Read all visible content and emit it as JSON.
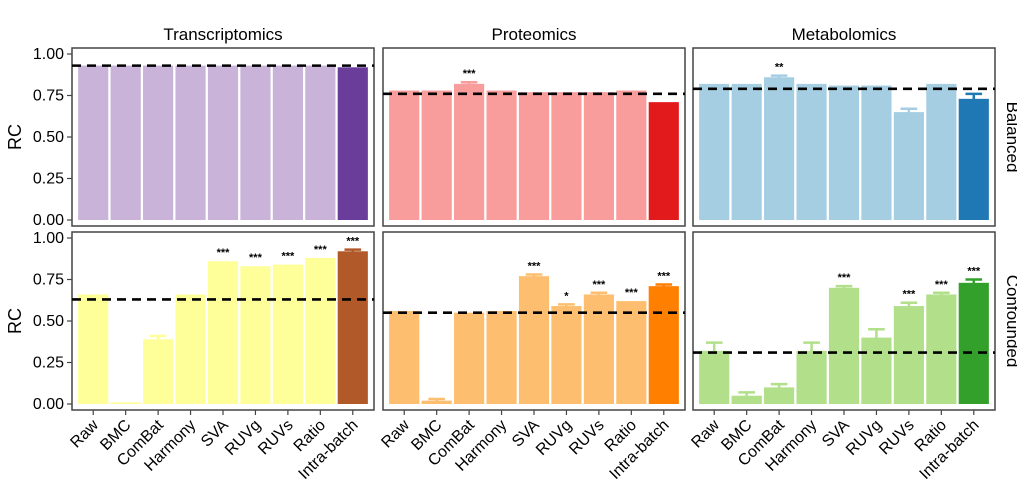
{
  "chart_data": {
    "type": "bar",
    "columns": [
      "Transcriptomics",
      "Proteomics",
      "Metabolomics"
    ],
    "rows": [
      "Balanced",
      "Confounded"
    ],
    "ylabel": "RC",
    "ylim": [
      0,
      1
    ],
    "yticks": [
      "0.00",
      "0.25",
      "0.50",
      "0.75",
      "1.00"
    ],
    "categories": [
      "Raw",
      "BMC",
      "ComBat",
      "Harmony",
      "SVA",
      "RUVg",
      "RUVs",
      "Ratio",
      "Intra-batch"
    ],
    "panels": [
      {
        "column": "Transcriptomics",
        "row": "Balanced",
        "light_color": "#c9b3d8",
        "dark_color": "#6a3d9a",
        "values": [
          0.93,
          0.93,
          0.93,
          0.93,
          0.93,
          0.93,
          0.93,
          0.93,
          0.92
        ],
        "errors": [
          0,
          0,
          0,
          0,
          0,
          0,
          0,
          0,
          0
        ],
        "reference_line": 0.93,
        "significance": [
          "",
          "",
          "",
          "",
          "",
          "",
          "",
          "",
          ""
        ]
      },
      {
        "column": "Proteomics",
        "row": "Balanced",
        "light_color": "#f89c9c",
        "dark_color": "#e31a1c",
        "values": [
          0.78,
          0.78,
          0.82,
          0.78,
          0.77,
          0.77,
          0.77,
          0.78,
          0.71
        ],
        "errors": [
          0,
          0,
          0.01,
          0,
          0,
          0,
          0,
          0,
          0
        ],
        "reference_line": 0.76,
        "significance": [
          "",
          "",
          "***",
          "",
          "",
          "",
          "",
          "",
          ""
        ]
      },
      {
        "column": "Metabolomics",
        "row": "Balanced",
        "light_color": "#a6cee3",
        "dark_color": "#1f78b4",
        "values": [
          0.82,
          0.82,
          0.86,
          0.82,
          0.81,
          0.81,
          0.65,
          0.82,
          0.73
        ],
        "errors": [
          0,
          0,
          0.01,
          0,
          0,
          0,
          0.02,
          0,
          0.03
        ],
        "reference_line": 0.79,
        "significance": [
          "",
          "",
          "**",
          "",
          "",
          "",
          "",
          "",
          ""
        ]
      },
      {
        "column": "Transcriptomics",
        "row": "Confounded",
        "light_color": "#ffff99",
        "dark_color": "#b15928",
        "values": [
          0.66,
          0.01,
          0.39,
          0.66,
          0.86,
          0.83,
          0.84,
          0.88,
          0.92
        ],
        "errors": [
          0,
          0,
          0.02,
          0,
          0,
          0,
          0,
          0,
          0.01
        ],
        "reference_line": 0.63,
        "significance": [
          "",
          "",
          "",
          "",
          "***",
          "***",
          "***",
          "***",
          "***"
        ]
      },
      {
        "column": "Proteomics",
        "row": "Confounded",
        "light_color": "#fdbf6f",
        "dark_color": "#ff7f00",
        "values": [
          0.56,
          0.02,
          0.55,
          0.56,
          0.77,
          0.59,
          0.66,
          0.62,
          0.71
        ],
        "errors": [
          0,
          0.01,
          0,
          0,
          0.01,
          0.01,
          0.01,
          0,
          0.01
        ],
        "reference_line": 0.55,
        "significance": [
          "",
          "",
          "",
          "",
          "***",
          "*",
          "***",
          "***",
          "***"
        ]
      },
      {
        "column": "Metabolomics",
        "row": "Confounded",
        "light_color": "#b2df8a",
        "dark_color": "#33a02c",
        "values": [
          0.32,
          0.05,
          0.1,
          0.32,
          0.7,
          0.4,
          0.59,
          0.66,
          0.73
        ],
        "errors": [
          0.05,
          0.02,
          0.02,
          0.05,
          0.01,
          0.05,
          0.02,
          0.01,
          0.02
        ],
        "reference_line": 0.31,
        "significance": [
          "",
          "",
          "",
          "",
          "***",
          "",
          "***",
          "***",
          "***"
        ]
      }
    ]
  }
}
